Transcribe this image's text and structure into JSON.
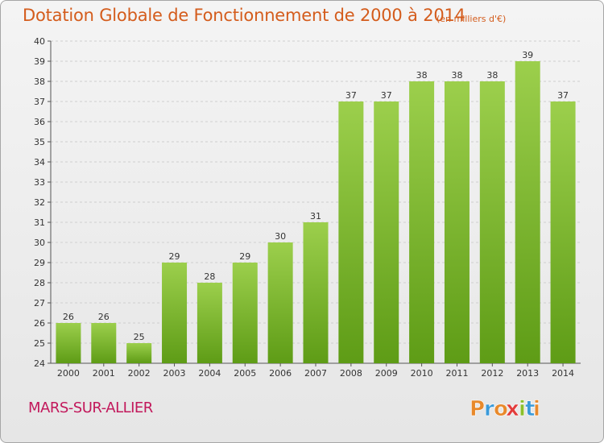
{
  "chart_data": {
    "type": "bar",
    "title": "Dotation Globale de Fonctionnement de 2000 à 2014",
    "subtitle": "(en milliers d'€)",
    "categories": [
      "2000",
      "2001",
      "2002",
      "2003",
      "2004",
      "2005",
      "2006",
      "2007",
      "2008",
      "2009",
      "2010",
      "2011",
      "2012",
      "2013",
      "2014"
    ],
    "values": [
      26,
      26,
      25,
      29,
      28,
      29,
      30,
      31,
      37,
      37,
      38,
      38,
      38,
      39,
      37
    ],
    "ylim": [
      24,
      40
    ],
    "yticks": [
      24,
      25,
      26,
      27,
      28,
      29,
      30,
      31,
      32,
      33,
      34,
      35,
      36,
      37,
      38,
      39,
      40
    ],
    "xlabel": "",
    "ylabel": "",
    "grid": true,
    "bar_color_top": "#9ccf4c",
    "bar_color_bottom": "#5e9c16"
  },
  "commune": "MARS-SUR-ALLIER",
  "logo": {
    "letters": [
      "P",
      "r",
      "o",
      "x",
      "i",
      "t",
      "i"
    ],
    "colors": [
      "#e8892b",
      "#3a9ad9",
      "#e8892b",
      "#e23c3c",
      "#8bbf2b",
      "#3a9ad9",
      "#e8892b"
    ]
  }
}
